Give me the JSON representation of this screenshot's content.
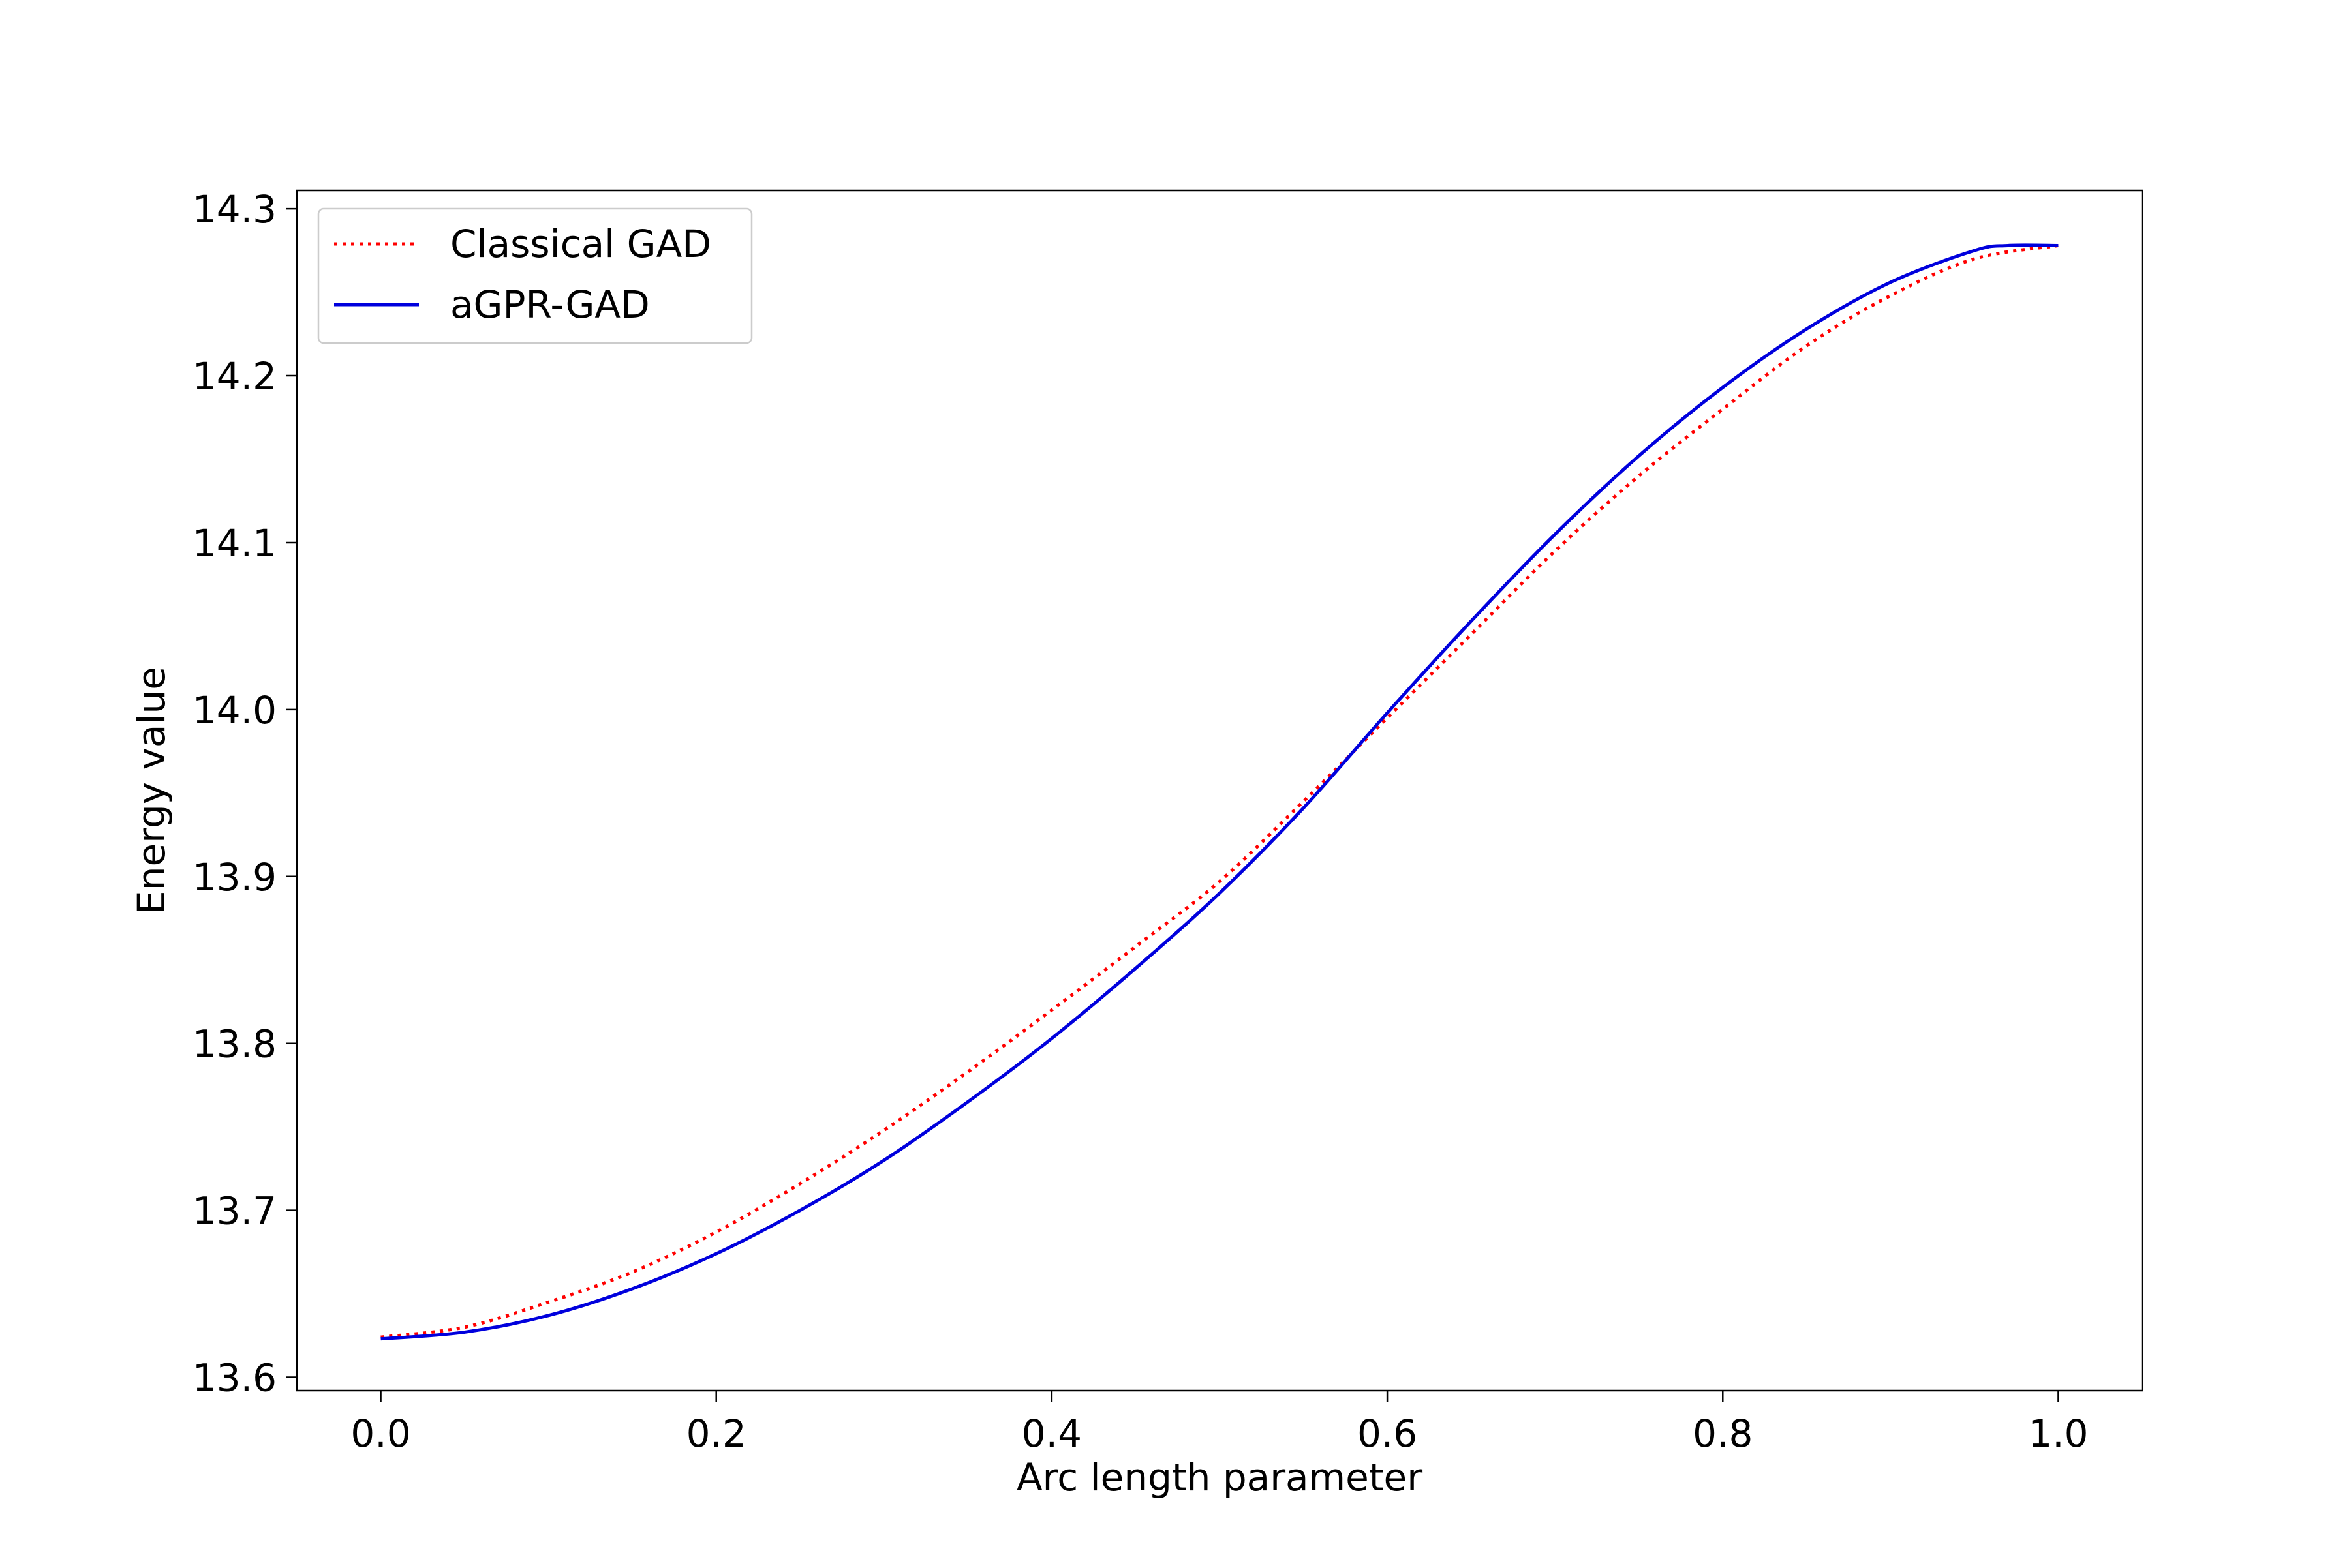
{
  "chart_data": {
    "type": "line",
    "title": "",
    "xlabel": "Arc length parameter",
    "ylabel": "Energy value",
    "xlim": [
      -0.05,
      1.05
    ],
    "ylim": [
      13.592,
      14.311
    ],
    "grid": false,
    "legend_position": "upper-left",
    "xticks": [
      0.0,
      0.2,
      0.4,
      0.6,
      0.8,
      1.0
    ],
    "xtick_labels": [
      "0.0",
      "0.2",
      "0.4",
      "0.6",
      "0.8",
      "1.0"
    ],
    "yticks": [
      13.6,
      13.7,
      13.8,
      13.9,
      14.0,
      14.1,
      14.2,
      14.3
    ],
    "ytick_labels": [
      "13.6",
      "13.7",
      "13.8",
      "13.9",
      "14.0",
      "14.1",
      "14.2",
      "14.3"
    ],
    "series": [
      {
        "name": "Classical GAD",
        "color": "#ff0000",
        "style": "dotted",
        "x": [
          0.0,
          0.05,
          0.1,
          0.15,
          0.2,
          0.25,
          0.3,
          0.35,
          0.4,
          0.45,
          0.5,
          0.55,
          0.6,
          0.65,
          0.7,
          0.75,
          0.8,
          0.85,
          0.9,
          0.95,
          1.0
        ],
        "y": [
          13.624,
          13.63,
          13.645,
          13.663,
          13.687,
          13.716,
          13.748,
          13.783,
          13.82,
          13.858,
          13.897,
          13.945,
          13.995,
          14.045,
          14.095,
          14.14,
          14.18,
          14.218,
          14.248,
          14.27,
          14.278
        ]
      },
      {
        "name": "aGPR-GAD",
        "color": "#0000dd",
        "style": "solid",
        "x": [
          0.0,
          0.05,
          0.1,
          0.15,
          0.2,
          0.25,
          0.3,
          0.35,
          0.4,
          0.45,
          0.5,
          0.55,
          0.6,
          0.65,
          0.7,
          0.75,
          0.8,
          0.85,
          0.9,
          0.95,
          0.97,
          1.0
        ],
        "y": [
          13.623,
          13.627,
          13.637,
          13.653,
          13.674,
          13.7,
          13.73,
          13.765,
          13.803,
          13.845,
          13.89,
          13.941,
          13.998,
          14.053,
          14.105,
          14.152,
          14.193,
          14.228,
          14.256,
          14.275,
          14.278,
          14.278
        ]
      }
    ]
  }
}
